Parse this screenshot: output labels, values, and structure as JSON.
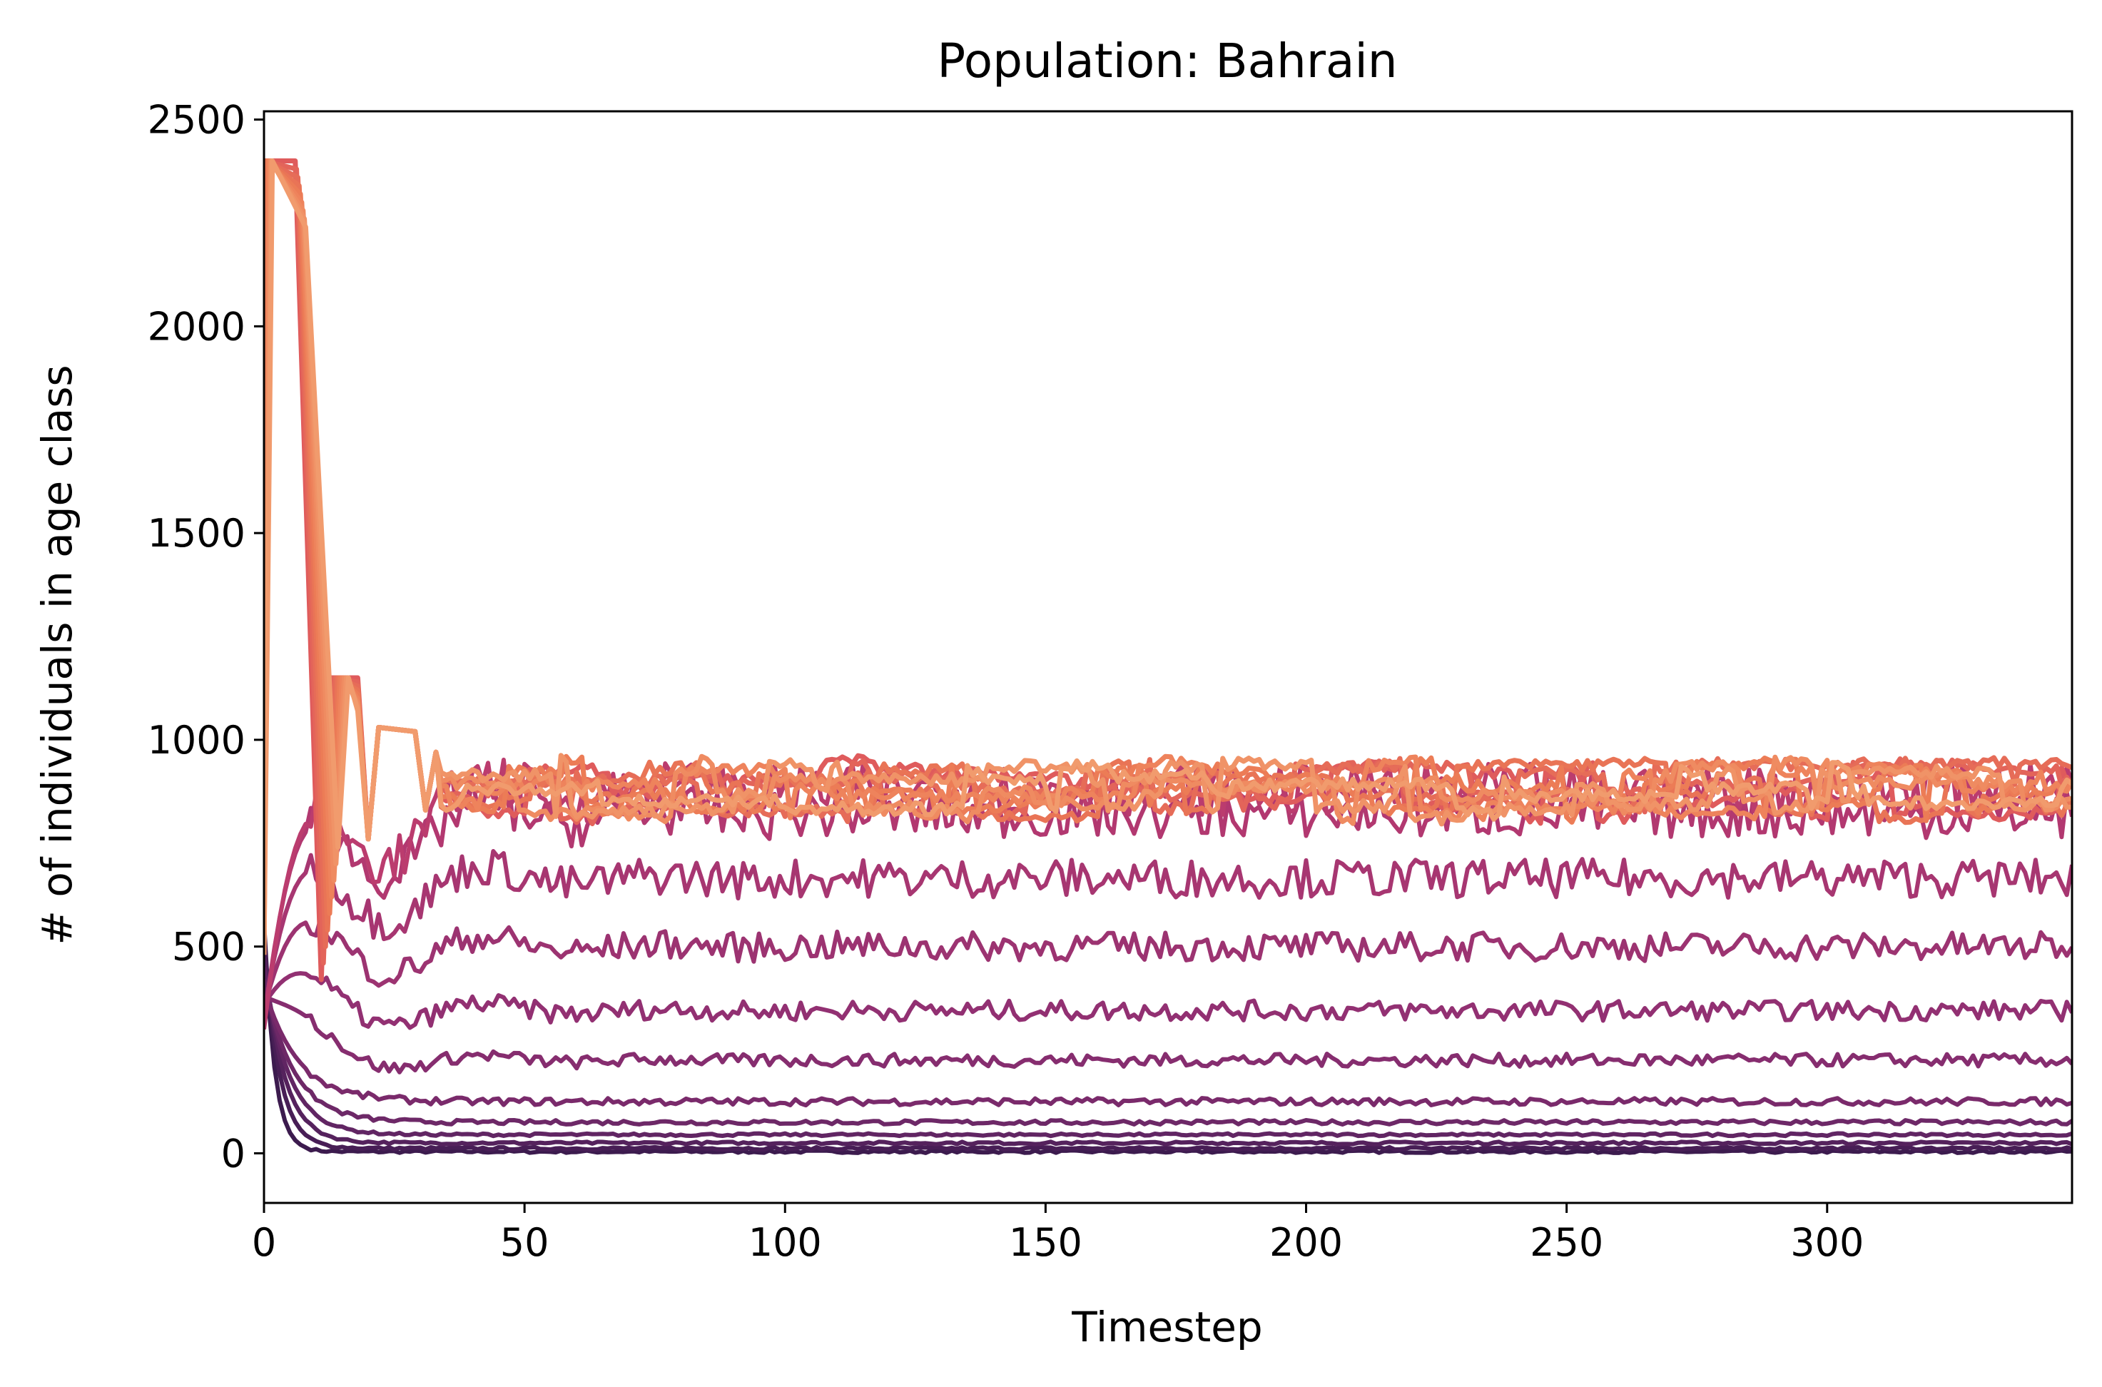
{
  "chart_data": {
    "type": "line",
    "title": "Population: Bahrain",
    "xlabel": "Timestep",
    "ylabel": "# of individuals in age class",
    "xlim": [
      0,
      347
    ],
    "ylim": [
      -120,
      2520
    ],
    "x_ticks": [
      0,
      50,
      100,
      150,
      200,
      250,
      300
    ],
    "y_ticks": [
      0,
      500,
      1000,
      1500,
      2000,
      2500
    ],
    "grid": false,
    "legend": "none",
    "colormap": [
      "#2d1746",
      "#5e2462",
      "#8e2f72",
      "#b83a70",
      "#d94d5f",
      "#ec7a55",
      "#f3a574"
    ],
    "series_approx": {
      "steady_levels_young_to_old": [
        4,
        12,
        25,
        45,
        75,
        125,
        225,
        345,
        500,
        665,
        820,
        880
      ],
      "initial_values": [
        560,
        520,
        480,
        450,
        420,
        400,
        380,
        360,
        350,
        340,
        320,
        300
      ],
      "initial_peak": 2400,
      "old_cohort_band": [
        800,
        960
      ],
      "x_end": 347
    }
  }
}
